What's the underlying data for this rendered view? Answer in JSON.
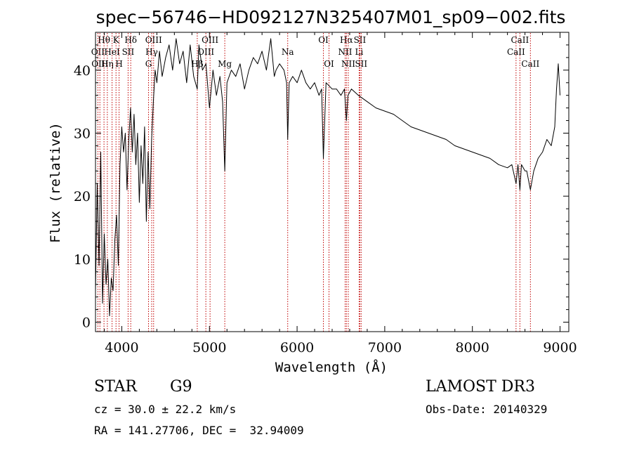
{
  "chart_data": {
    "type": "line",
    "title": "spec−56746−HD092127N325407M01_sp09−002.fits",
    "xlabel": "Wavelength (Å)",
    "ylabel": "Flux (relative)",
    "xlim": [
      3700,
      9100
    ],
    "ylim": [
      -1.5,
      46
    ],
    "xticks": [
      4000,
      5000,
      6000,
      7000,
      8000,
      9000
    ],
    "yticks": [
      0,
      10,
      20,
      30,
      40
    ],
    "series": [
      {
        "name": "flux",
        "x": [
          3700,
          3720,
          3740,
          3760,
          3780,
          3800,
          3820,
          3840,
          3860,
          3880,
          3900,
          3920,
          3940,
          3960,
          3980,
          4000,
          4020,
          4040,
          4060,
          4080,
          4100,
          4120,
          4140,
          4160,
          4180,
          4200,
          4220,
          4240,
          4260,
          4280,
          4300,
          4320,
          4340,
          4360,
          4380,
          4400,
          4430,
          4460,
          4500,
          4540,
          4580,
          4620,
          4660,
          4700,
          4740,
          4780,
          4820,
          4861,
          4880,
          4920,
          4960,
          5000,
          5040,
          5080,
          5120,
          5150,
          5175,
          5200,
          5250,
          5300,
          5350,
          5400,
          5450,
          5500,
          5550,
          5600,
          5650,
          5700,
          5740,
          5760,
          5800,
          5850,
          5880,
          5893,
          5910,
          5950,
          6000,
          6050,
          6100,
          6150,
          6200,
          6250,
          6280,
          6300,
          6330,
          6400,
          6450,
          6500,
          6540,
          6563,
          6580,
          6620,
          6700,
          6800,
          6900,
          7000,
          7100,
          7200,
          7300,
          7400,
          7500,
          7600,
          7700,
          7800,
          7900,
          8000,
          8100,
          8200,
          8300,
          8400,
          8450,
          8498,
          8520,
          8542,
          8560,
          8600,
          8620,
          8662,
          8700,
          8750,
          8800,
          8850,
          8900,
          8940,
          8960,
          8980,
          9000
        ],
        "y": [
          5,
          22,
          9,
          27,
          3,
          14,
          6,
          10,
          1,
          7,
          5,
          13,
          17,
          9,
          25,
          31,
          27,
          30,
          21,
          29,
          34,
          27,
          33,
          25,
          30,
          19,
          28,
          22,
          31,
          16,
          27,
          18,
          29,
          35,
          40,
          38,
          43,
          39,
          42,
          44,
          40,
          45,
          41,
          43,
          38,
          44,
          39,
          37,
          44,
          40,
          41,
          34,
          40,
          36,
          39,
          35,
          24,
          38,
          40,
          39,
          41,
          37,
          40,
          42,
          41,
          43,
          40,
          45,
          39,
          40,
          41,
          40,
          38,
          29,
          38,
          39,
          38,
          40,
          38,
          37,
          38,
          36,
          37,
          26,
          38,
          37,
          37,
          36,
          37,
          32,
          36,
          37,
          36,
          35,
          34,
          33.5,
          33,
          32,
          31,
          30.5,
          30,
          29.5,
          29,
          28,
          27.5,
          27,
          26.5,
          26,
          25,
          24.5,
          25,
          22,
          25,
          21,
          25,
          24,
          24,
          21,
          24,
          26,
          27,
          29,
          28,
          31,
          37,
          41,
          36
        ]
      }
    ],
    "line_markers": [
      {
        "label": "Hθ",
        "x": 3797,
        "row": 0
      },
      {
        "label": "OII",
        "x": 3727,
        "row": 1
      },
      {
        "label": "OIII",
        "x": 3750,
        "row": 2
      },
      {
        "label": "K",
        "x": 3934,
        "row": 0
      },
      {
        "label": "HeI",
        "x": 3889,
        "row": 1
      },
      {
        "label": "Hη",
        "x": 3835,
        "row": 2
      },
      {
        "label": "H",
        "x": 3969,
        "row": 2
      },
      {
        "label": "SII",
        "x": 4072,
        "row": 1
      },
      {
        "label": "Hδ",
        "x": 4102,
        "row": 0
      },
      {
        "label": "OIII",
        "x": 4363,
        "row": 0
      },
      {
        "label": "Hγ",
        "x": 4341,
        "row": 1
      },
      {
        "label": "G",
        "x": 4305,
        "row": 2
      },
      {
        "label": "Hβ",
        "x": 4861,
        "row": 2
      },
      {
        "label": "OIII",
        "x": 5007,
        "row": 0
      },
      {
        "label": "OIII",
        "x": 4959,
        "row": 1
      },
      {
        "label": "Mg",
        "x": 5175,
        "row": 2
      },
      {
        "label": "Na",
        "x": 5893,
        "row": 1
      },
      {
        "label": "OI",
        "x": 6300,
        "row": 0
      },
      {
        "label": "OI",
        "x": 6364,
        "row": 2
      },
      {
        "label": "Hα",
        "x": 6563,
        "row": 0
      },
      {
        "label": "NII",
        "x": 6548,
        "row": 1
      },
      {
        "label": "NII",
        "x": 6584,
        "row": 2
      },
      {
        "label": "SII",
        "x": 6716,
        "row": 0
      },
      {
        "label": "Li",
        "x": 6708,
        "row": 1
      },
      {
        "label": "SII",
        "x": 6731,
        "row": 2
      },
      {
        "label": "CaII",
        "x": 8542,
        "row": 0
      },
      {
        "label": "CaII",
        "x": 8498,
        "row": 1
      },
      {
        "label": "CaII",
        "x": 8662,
        "row": 2
      }
    ]
  },
  "info": {
    "object_class": "STAR",
    "subclass": "G9",
    "cz": "cz = 30.0 ± 22.2 km/s",
    "coords": "RA = 141.27706, DEC =  32.94009",
    "survey": "LAMOST DR3",
    "obs_date": "Obs-Date: 20140329"
  }
}
